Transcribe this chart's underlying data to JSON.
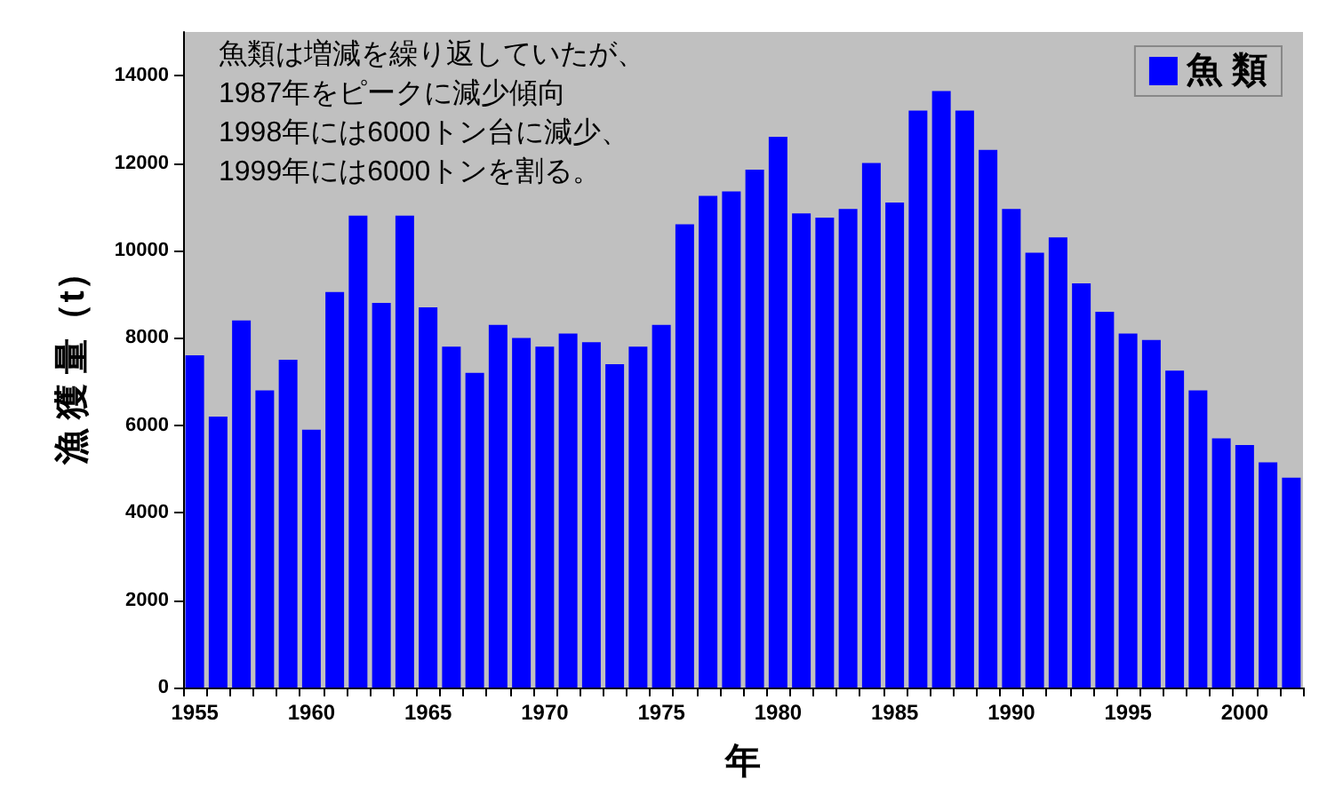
{
  "chart_data": {
    "type": "bar",
    "xlabel": "年",
    "ylabel": "漁 獲 量（t）",
    "annotations": [
      "魚類は増減を繰り返していたが、\n1987年をピークに減少傾向\n1998年には6000トン台に減少、\n1999年には6000トンを割る。"
    ],
    "categories": [
      "1955",
      null,
      null,
      null,
      null,
      "1960",
      null,
      null,
      null,
      null,
      "1965",
      null,
      null,
      null,
      null,
      "1970",
      null,
      null,
      null,
      null,
      "1975",
      null,
      null,
      null,
      null,
      "1980",
      null,
      null,
      null,
      null,
      "1985",
      null,
      null,
      null,
      null,
      "1990",
      null,
      null,
      null,
      null,
      "1995",
      null,
      null,
      null,
      null,
      "2000",
      null,
      null
    ],
    "series": [
      {
        "name": "魚 類",
        "color": "#0000ff",
        "values": [
          7600,
          6200,
          8400,
          6800,
          7500,
          5900,
          9050,
          10800,
          8800,
          10800,
          8700,
          7800,
          7200,
          8300,
          8000,
          7800,
          8100,
          7900,
          7400,
          7800,
          8300,
          10600,
          11250,
          11350,
          11850,
          12600,
          10850,
          10750,
          10950,
          12000,
          11100,
          13200,
          13650,
          13200,
          12300,
          10950,
          9950,
          10300,
          9250,
          8600,
          8100,
          7950,
          7250,
          6800,
          5700,
          5550,
          5150,
          4800
        ]
      }
    ],
    "ylim": [
      0,
      15000
    ],
    "yticks": [
      0,
      2000,
      4000,
      6000,
      8000,
      10000,
      12000,
      14000
    ],
    "grid": false,
    "legend": "top right"
  }
}
